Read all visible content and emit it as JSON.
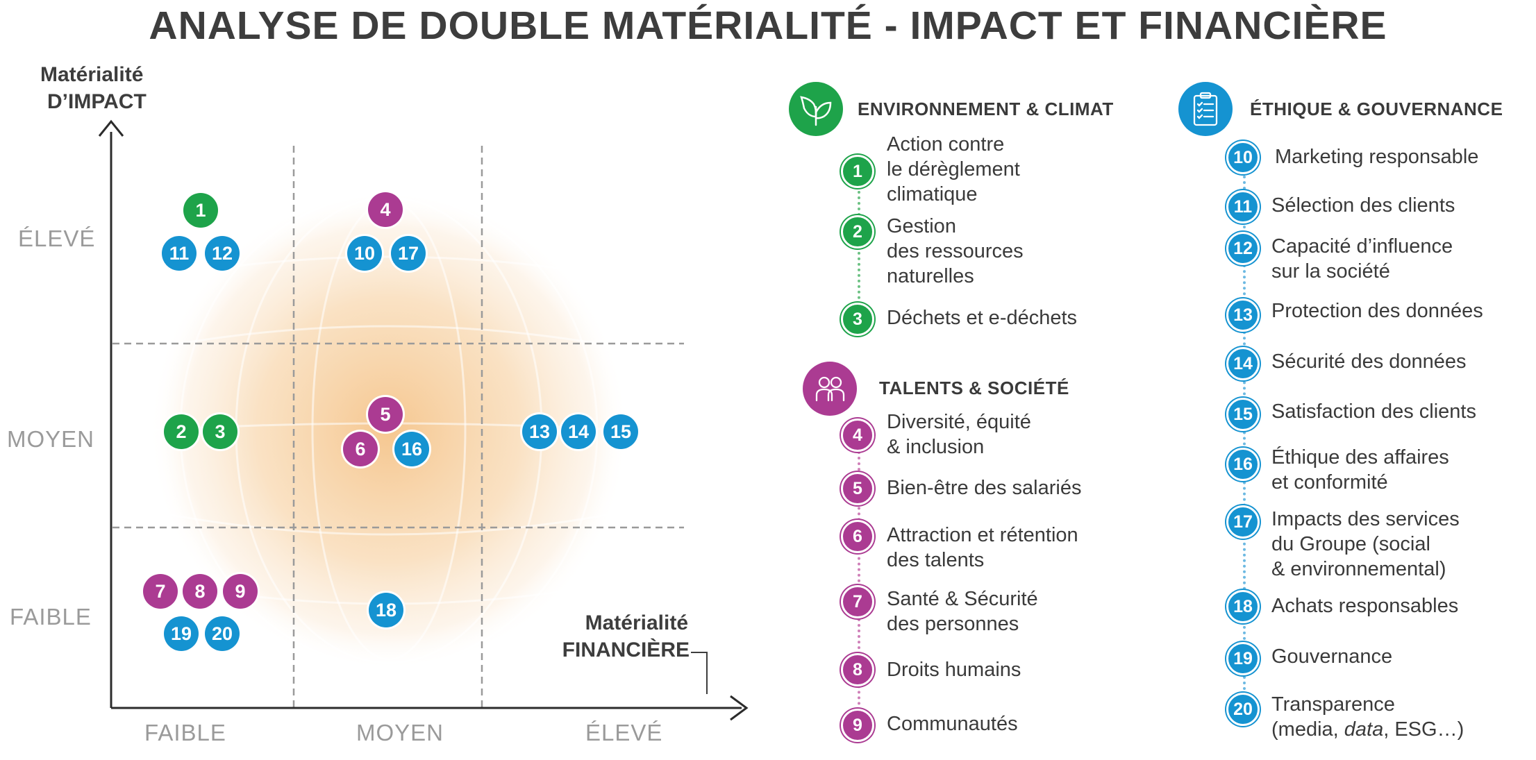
{
  "title": "ANALYSE DE DOUBLE MATÉRIALITÉ - IMPACT ET FINANCIÈRE",
  "colors": {
    "green": "#1ea34a",
    "purple": "#ab3b92",
    "blue": "#1593d1",
    "axis": "#3d3d3d",
    "grid": "#9a9a9a",
    "sphere": "#f6c990"
  },
  "axes": {
    "y_title_line1": "Matérialité",
    "y_title_line2": "D’IMPACT",
    "x_title_line1": "Matérialité",
    "x_title_line2": "FINANCIÈRE",
    "y_ticks": [
      "ÉLEVÉ",
      "MOYEN",
      "FAIBLE"
    ],
    "x_ticks": [
      "FAIBLE",
      "MOYEN",
      "ÉLEVÉ"
    ]
  },
  "matrix_points": [
    {
      "n": "1",
      "cat": "green",
      "x": "FAIBLE",
      "y": "ÉLEVÉ"
    },
    {
      "n": "11",
      "cat": "blue",
      "x": "FAIBLE",
      "y": "ÉLEVÉ"
    },
    {
      "n": "12",
      "cat": "blue",
      "x": "FAIBLE",
      "y": "ÉLEVÉ"
    },
    {
      "n": "4",
      "cat": "purple",
      "x": "MOYEN",
      "y": "ÉLEVÉ"
    },
    {
      "n": "10",
      "cat": "blue",
      "x": "MOYEN",
      "y": "ÉLEVÉ"
    },
    {
      "n": "17",
      "cat": "blue",
      "x": "MOYEN",
      "y": "ÉLEVÉ"
    },
    {
      "n": "2",
      "cat": "green",
      "x": "FAIBLE",
      "y": "MOYEN"
    },
    {
      "n": "3",
      "cat": "green",
      "x": "FAIBLE",
      "y": "MOYEN"
    },
    {
      "n": "5",
      "cat": "purple",
      "x": "MOYEN",
      "y": "MOYEN"
    },
    {
      "n": "6",
      "cat": "purple",
      "x": "MOYEN",
      "y": "MOYEN"
    },
    {
      "n": "16",
      "cat": "blue",
      "x": "MOYEN",
      "y": "MOYEN"
    },
    {
      "n": "13",
      "cat": "blue",
      "x": "ÉLEVÉ",
      "y": "MOYEN"
    },
    {
      "n": "14",
      "cat": "blue",
      "x": "ÉLEVÉ",
      "y": "MOYEN"
    },
    {
      "n": "15",
      "cat": "blue",
      "x": "ÉLEVÉ",
      "y": "MOYEN"
    },
    {
      "n": "7",
      "cat": "purple",
      "x": "FAIBLE",
      "y": "FAIBLE"
    },
    {
      "n": "8",
      "cat": "purple",
      "x": "FAIBLE",
      "y": "FAIBLE"
    },
    {
      "n": "9",
      "cat": "purple",
      "x": "FAIBLE",
      "y": "FAIBLE"
    },
    {
      "n": "19",
      "cat": "blue",
      "x": "FAIBLE",
      "y": "FAIBLE"
    },
    {
      "n": "20",
      "cat": "blue",
      "x": "FAIBLE",
      "y": "FAIBLE"
    },
    {
      "n": "18",
      "cat": "blue",
      "x": "MOYEN",
      "y": "FAIBLE"
    }
  ],
  "legend": {
    "environment": {
      "title": "ENVIRONNEMENT & CLIMAT",
      "icon": "leaf-icon",
      "items": [
        {
          "n": "1",
          "text": "Action contre\nle dérèglement\nclimatique"
        },
        {
          "n": "2",
          "text": "Gestion\ndes ressources\nnaturelles"
        },
        {
          "n": "3",
          "text": "Déchets et e-déchets"
        }
      ]
    },
    "talents": {
      "title": "TALENTS & SOCIÉTÉ",
      "icon": "people-icon",
      "items": [
        {
          "n": "4",
          "text": "Diversité, équité\n& inclusion"
        },
        {
          "n": "5",
          "text": "Bien-être des salariés"
        },
        {
          "n": "6",
          "text": "Attraction et rétention\ndes talents"
        },
        {
          "n": "7",
          "text": "Santé & Sécurité\ndes personnes"
        },
        {
          "n": "8",
          "text": "Droits humains"
        },
        {
          "n": "9",
          "text": "Communautés"
        }
      ]
    },
    "ethics": {
      "title": "ÉTHIQUE &  GOUVERNANCE",
      "icon": "clipboard-checklist-icon",
      "items": [
        {
          "n": "10",
          "text": "Marketing responsable"
        },
        {
          "n": "11",
          "text": "Sélection des clients"
        },
        {
          "n": "12",
          "text": "Capacité d’influence\nsur la société"
        },
        {
          "n": "13",
          "text": "Protection des données"
        },
        {
          "n": "14",
          "text": "Sécurité des données"
        },
        {
          "n": "15",
          "text": "Satisfaction des clients"
        },
        {
          "n": "16",
          "text": "Éthique des affaires\net conformité"
        },
        {
          "n": "17",
          "text": "Impacts des services\ndu Groupe (social\n& environnemental)"
        },
        {
          "n": "18",
          "text": "Achats responsables"
        },
        {
          "n": "19",
          "text": "Gouvernance"
        },
        {
          "n": "20",
          "text": "Transparence\n(media, data, ESG…)"
        }
      ]
    }
  }
}
